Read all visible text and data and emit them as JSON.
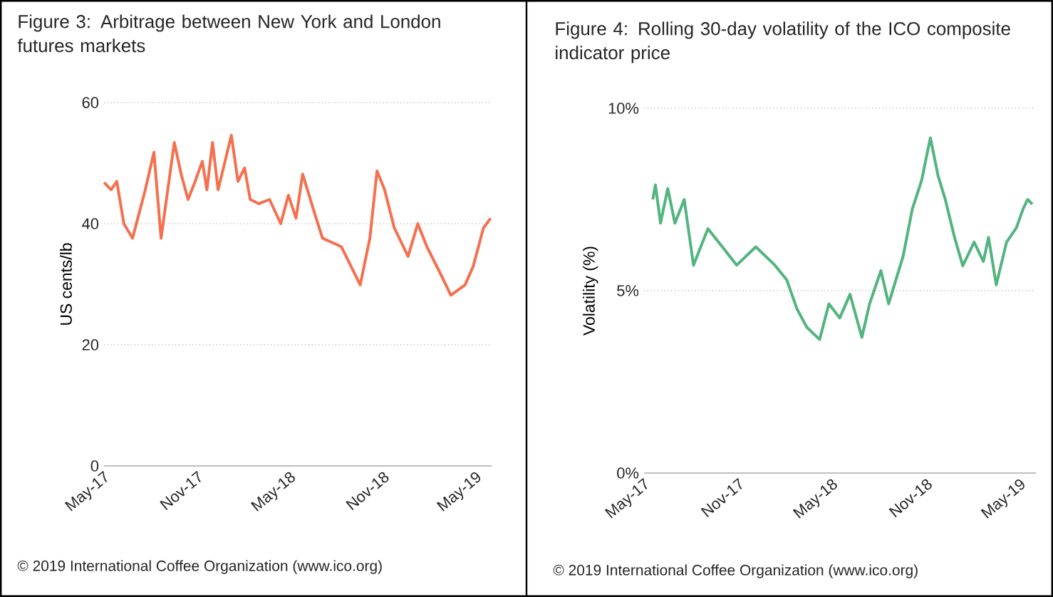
{
  "chart_data": [
    {
      "type": "line",
      "title": "Figure 3:    Arbitrage between New York and London futures markets",
      "ylabel": "US cents/lb",
      "color": "#f4704f",
      "grid": "y",
      "xlim": [
        "2017-05-01",
        "2019-06-01"
      ],
      "ylim": [
        0,
        60
      ],
      "yticks": [
        0,
        20,
        40,
        60
      ],
      "xticks": [
        {
          "value": "2017-05-01",
          "label": "May-17"
        },
        {
          "value": "2017-11-01",
          "label": "Nov-17"
        },
        {
          "value": "2018-05-01",
          "label": "May-18"
        },
        {
          "value": "2018-11-01",
          "label": "Nov-18"
        },
        {
          "value": "2019-05-01",
          "label": "May-19"
        }
      ],
      "x": [
        "2017-05-01",
        "2017-05-15",
        "2017-05-26",
        "2017-06-09",
        "2017-06-26",
        "2017-07-21",
        "2017-08-07",
        "2017-08-21",
        "2017-09-16",
        "2017-09-30",
        "2017-10-13",
        "2017-10-27",
        "2017-11-10",
        "2017-11-19",
        "2017-11-30",
        "2017-12-11",
        "2017-12-22",
        "2018-01-06",
        "2018-01-19",
        "2018-02-01",
        "2018-02-12",
        "2018-03-01",
        "2018-03-22",
        "2018-04-13",
        "2018-04-28",
        "2018-05-13",
        "2018-05-26",
        "2018-06-16",
        "2018-07-04",
        "2018-08-10",
        "2018-09-16",
        "2018-10-05",
        "2018-10-19",
        "2018-11-03",
        "2018-11-22",
        "2018-12-19",
        "2019-01-07",
        "2019-01-25",
        "2019-02-22",
        "2019-03-13",
        "2019-04-10",
        "2019-04-26",
        "2019-05-16",
        "2019-05-30"
      ],
      "values": [
        46.8,
        45.6,
        47,
        40,
        37.6,
        45.6,
        51.8,
        37.6,
        53.4,
        48,
        44,
        47,
        50.3,
        45.6,
        53.4,
        45.6,
        49.4,
        54.6,
        47,
        49.2,
        44,
        43.3,
        44,
        40,
        44.7,
        40.9,
        48.2,
        42.4,
        37.6,
        36.2,
        29.9,
        37.6,
        48.7,
        45.6,
        39.3,
        34.6,
        40,
        36.2,
        31.5,
        28.2,
        29.9,
        33,
        39.3,
        40.9
      ],
      "annotations": [
        "© 2019 International Coffee Organization (www.ico.org)"
      ]
    },
    {
      "type": "line",
      "title": "Figure 4:    Rolling 30-day volatility of the ICO composite indicator price",
      "ylabel": "Volatility (%)",
      "color": "#52b47e",
      "grid": "y",
      "xlim": [
        "2017-05-01",
        "2019-06-01"
      ],
      "ylim": [
        0,
        10
      ],
      "yticks": [
        {
          "value": 0,
          "label": "0%"
        },
        {
          "value": 5,
          "label": "5%"
        },
        {
          "value": 10,
          "label": "10%"
        }
      ],
      "xticks": [
        {
          "value": "2017-05-01",
          "label": "May-17"
        },
        {
          "value": "2017-11-01",
          "label": "Nov-17"
        },
        {
          "value": "2018-05-01",
          "label": "May-18"
        },
        {
          "value": "2018-11-01",
          "label": "Nov-18"
        },
        {
          "value": "2019-05-01",
          "label": "May-19"
        }
      ],
      "x": [
        "2017-05-18",
        "2017-05-23",
        "2017-06-02",
        "2017-06-16",
        "2017-06-30",
        "2017-07-18",
        "2017-08-05",
        "2017-09-02",
        "2017-09-30",
        "2017-10-28",
        "2017-12-04",
        "2018-01-10",
        "2018-02-02",
        "2018-02-22",
        "2018-03-13",
        "2018-04-07",
        "2018-04-25",
        "2018-05-16",
        "2018-06-05",
        "2018-06-28",
        "2018-07-13",
        "2018-08-04",
        "2018-08-19",
        "2018-09-16",
        "2018-10-04",
        "2018-10-22",
        "2018-11-08",
        "2018-11-23",
        "2018-12-07",
        "2018-12-25",
        "2019-01-10",
        "2019-02-01",
        "2019-02-19",
        "2019-03-01",
        "2019-03-16",
        "2019-04-05",
        "2019-04-24",
        "2019-05-07",
        "2019-05-16",
        "2019-05-25"
      ],
      "values": [
        7.5,
        7.9,
        6.85,
        7.8,
        6.85,
        7.5,
        5.7,
        6.7,
        6.2,
        5.7,
        6.2,
        5.7,
        5.3,
        4.5,
        4.0,
        3.66,
        4.64,
        4.25,
        4.9,
        3.72,
        4.64,
        5.55,
        4.64,
        5.94,
        7.24,
        8.02,
        9.19,
        8.15,
        7.5,
        6.46,
        5.68,
        6.33,
        5.8,
        6.46,
        5.16,
        6.33,
        6.72,
        7.24,
        7.5,
        7.37
      ],
      "annotations": [
        "© 2019 International Coffee Organization (www.ico.org)"
      ]
    }
  ]
}
